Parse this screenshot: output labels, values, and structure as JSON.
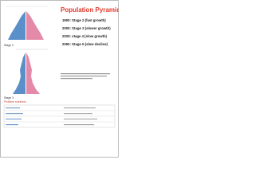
{
  "header": {
    "title": "Population Pyramid"
  },
  "stages": [
    "1900: Stage 2 (fast growth)",
    "2000: Stage 3 (slower growth)",
    "2025: stage 4 (slow growth)",
    "2050: Stage 5 (slow decline)"
  ],
  "pyramids": [
    {
      "label": "Stage 2"
    },
    {
      "label": "Stage 3"
    }
  ],
  "table": {
    "title": "Problem solutions"
  }
}
